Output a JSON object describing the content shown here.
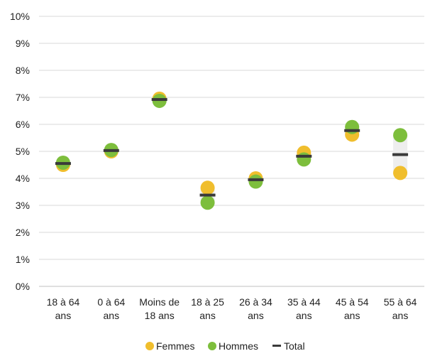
{
  "chart_data": {
    "type": "scatter",
    "title": "",
    "xlabel": "",
    "ylabel": "",
    "ylim": [
      0,
      10
    ],
    "y_ticks": [
      "0%",
      "1%",
      "2%",
      "3%",
      "4%",
      "5%",
      "6%",
      "7%",
      "8%",
      "9%",
      "10%"
    ],
    "grid": true,
    "legend_position": "bottom",
    "categories": [
      [
        "18 à 64",
        "ans"
      ],
      [
        "0 à 64",
        "ans"
      ],
      [
        "Moins de",
        "18 ans"
      ],
      [
        "18 à 25",
        "ans"
      ],
      [
        "26 à 34",
        "ans"
      ],
      [
        "35 à 44",
        "ans"
      ],
      [
        "45 à 54",
        "ans"
      ],
      [
        "55 à 64",
        "ans"
      ]
    ],
    "series": [
      {
        "name": "Femmes",
        "marker": "circle",
        "color": "#F0BE2D",
        "values": [
          4.5,
          5.0,
          6.95,
          3.65,
          4.0,
          4.95,
          5.62,
          4.2
        ]
      },
      {
        "name": "Hommes",
        "marker": "circle",
        "color": "#7DBE3C",
        "values": [
          4.58,
          5.05,
          6.87,
          3.1,
          3.88,
          4.7,
          5.9,
          5.6
        ]
      },
      {
        "name": "Total",
        "marker": "dash",
        "color": "#3A3A3A",
        "values": [
          4.55,
          5.03,
          6.92,
          3.38,
          3.95,
          4.82,
          5.77,
          4.88
        ]
      }
    ],
    "range_band_color": "#EEEEEE"
  }
}
